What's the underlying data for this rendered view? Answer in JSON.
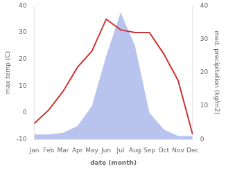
{
  "chart_data": {
    "type": "line",
    "categories": [
      "Jan",
      "Feb",
      "Mar",
      "Apr",
      "May",
      "Jun",
      "Jul",
      "Aug",
      "Sep",
      "Oct",
      "Nov",
      "Dec"
    ],
    "series": [
      {
        "type": "area",
        "axis": "y2",
        "color": "#b8c4ee",
        "values": [
          1.5,
          1.5,
          2,
          4,
          10,
          25,
          38,
          28,
          8,
          3,
          1,
          1
        ]
      },
      {
        "type": "line",
        "color": "#cc3333",
        "values": [
          -4,
          1,
          8,
          17,
          23,
          35,
          31,
          30,
          30,
          22,
          12,
          -8
        ]
      }
    ],
    "xlabel": "date (month)",
    "ylabel": "max temp (C)",
    "y2label": "med. precipitation (kg/m2)",
    "ylim": [
      -10,
      40
    ],
    "yticks": [
      -10,
      0,
      10,
      20,
      30,
      40
    ],
    "y2lim": [
      0,
      40
    ],
    "y2ticks": [
      0,
      10,
      20,
      30,
      40
    ],
    "grid": false
  }
}
